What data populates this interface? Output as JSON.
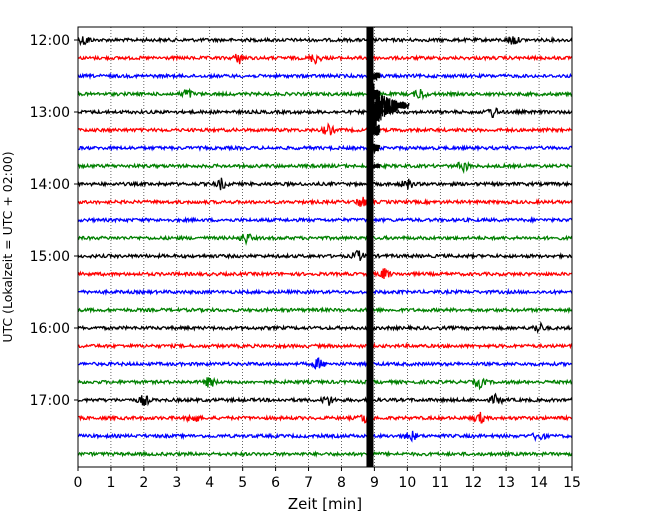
{
  "chart_data": {
    "type": "line",
    "title": "",
    "xlabel": "Zeit  [min]",
    "ylabel": "UTC (Lokalzeit = UTC + 02:00)",
    "xlim": [
      0,
      15
    ],
    "x_ticks": [
      "0",
      "1",
      "2",
      "3",
      "4",
      "5",
      "6",
      "7",
      "8",
      "9",
      "10",
      "11",
      "12",
      "13",
      "14",
      "15"
    ],
    "y_ticks": [
      "12:00",
      "13:00",
      "14:00",
      "15:00",
      "16:00",
      "17:00"
    ],
    "grid": "x-dotted",
    "row_minutes": 15,
    "start_time": "12:00",
    "rows": 24,
    "color_cycle": [
      "#000000",
      "#ff0000",
      "#0000ff",
      "#008000"
    ],
    "event": {
      "x_min": 8.85,
      "peak_row": 4,
      "label": ""
    },
    "bursts": [
      {
        "row": 0,
        "x": 0.2
      },
      {
        "row": 0,
        "x": 13.2
      },
      {
        "row": 1,
        "x": 4.9
      },
      {
        "row": 1,
        "x": 7.2
      },
      {
        "row": 3,
        "x": 3.3
      },
      {
        "row": 3,
        "x": 10.4
      },
      {
        "row": 4,
        "x": 12.6
      },
      {
        "row": 5,
        "x": 7.6
      },
      {
        "row": 7,
        "x": 11.7
      },
      {
        "row": 8,
        "x": 4.35
      },
      {
        "row": 8,
        "x": 10.0
      },
      {
        "row": 9,
        "x": 8.6
      },
      {
        "row": 11,
        "x": 5.1
      },
      {
        "row": 12,
        "x": 8.5
      },
      {
        "row": 13,
        "x": 9.3
      },
      {
        "row": 16,
        "x": 14.0
      },
      {
        "row": 18,
        "x": 7.3
      },
      {
        "row": 19,
        "x": 4.0
      },
      {
        "row": 19,
        "x": 12.2
      },
      {
        "row": 20,
        "x": 2.0
      },
      {
        "row": 20,
        "x": 7.6
      },
      {
        "row": 20,
        "x": 12.7
      },
      {
        "row": 21,
        "x": 3.5
      },
      {
        "row": 21,
        "x": 8.7
      },
      {
        "row": 21,
        "x": 12.2
      },
      {
        "row": 22,
        "x": 10.1
      },
      {
        "row": 22,
        "x": 14.0
      }
    ]
  }
}
